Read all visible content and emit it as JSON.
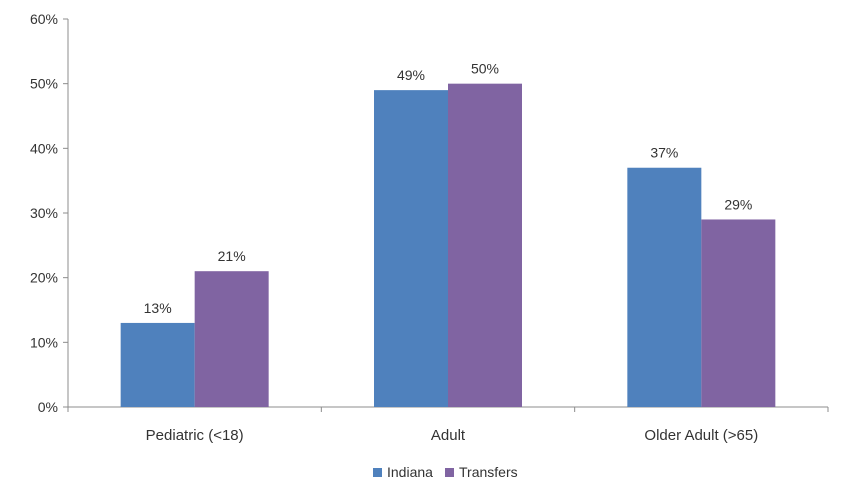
{
  "chart_data": {
    "type": "bar",
    "categories": [
      "Pediatric (<18)",
      "Adult",
      "Older Adult (>65)"
    ],
    "series": [
      {
        "name": "Indiana",
        "values": [
          13,
          49,
          37
        ],
        "labels": [
          "13%",
          "49%",
          "37%"
        ],
        "color": "#4f81bd"
      },
      {
        "name": "Transfers",
        "values": [
          21,
          50,
          29
        ],
        "labels": [
          "21%",
          "50%",
          "29%"
        ],
        "color": "#8064a2"
      }
    ],
    "ylim": [
      0,
      60
    ],
    "yticks": [
      0,
      10,
      20,
      30,
      40,
      50,
      60
    ],
    "ytick_labels": [
      "0%",
      "10%",
      "20%",
      "30%",
      "40%",
      "50%",
      "60%"
    ],
    "grid": false,
    "legend_position": "bottom"
  }
}
